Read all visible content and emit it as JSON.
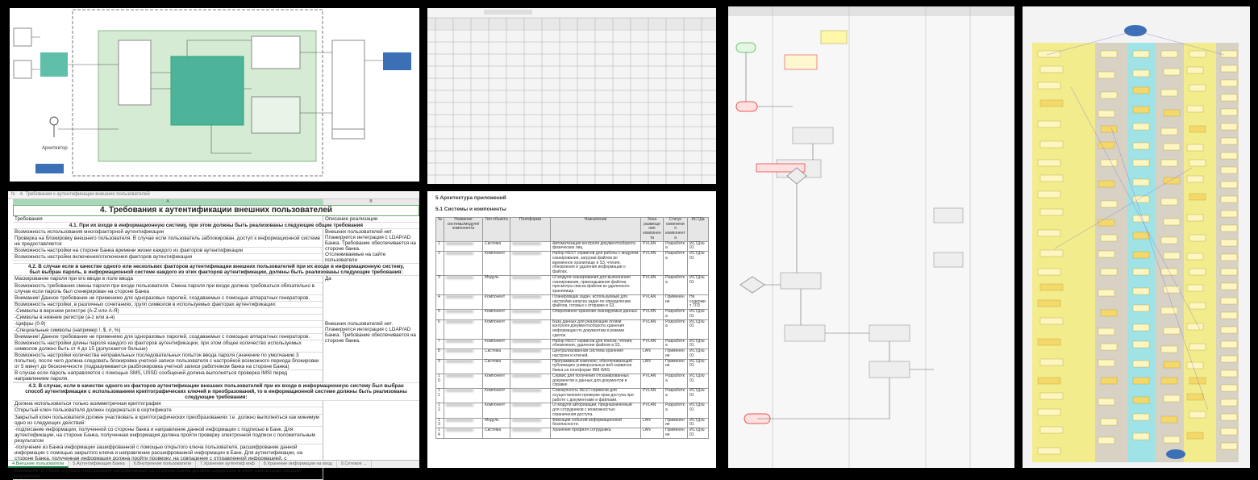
{
  "spreadsheet": {
    "formula_text": "4. Требования к аутентификации внешних пользователей",
    "col_a": "A",
    "col_b": "B",
    "title": "4. Требования к аутентификации внешних пользователей",
    "header_a": "Требования",
    "header_b": "Описание реализации",
    "sec1": "4.1. При их входе в информационную систему, при этом должны быть реализованы следующие общие требования",
    "rows1": [
      "Возможность использования многофакторной аутентификации",
      "Проверка на блокировку внешнего пользователя. В случае если пользователь заблокирован, доступ к информационной системе не предоставляется",
      "Возможность настройки на стороне Банка времени жизни каждого из факторов аутентификации",
      "Возможность настройки включения/отключения факторов аутентификации"
    ],
    "note1": "Внешних пользователей нет. Планируется интеграция с LDAP/AD Банка. Требование обеспечивается на стороне банка.",
    "note1b": "Отслеживаемые на сайте пользователи",
    "sec2": "4.2. В случае если в качестве одного или нескольких факторов аутентификации внешних пользователей при их входе в информационную систему, был выбран пароль, в информационной системе каждого из этих факторов аутентификации, должны быть реализованы следующие требования:",
    "rows2": [
      "Маскирование пароля при его вводе в поле ввода",
      "Возможность требования смены пароля при входе пользователя. Смена пароля при входе должна требоваться обязательно в случае если пароль был сгенерирован на стороне Банка",
      "Внимание! Данное требование не применимо для одноразовых паролей, создаваемых с помощью аппаратных генераторов.",
      "Возможность настройки, в различных сочетаниях, групп символов в используемых факторах аутентификации:",
      "-Символы в верхнем регистре (A-Z или А-Я)",
      "-Символы в нижнем регистре (a-z или а-я)",
      "-Цифры (0-9)",
      "-Специальные символы (например !, $, #, %)",
      "Внимание! Данное требование не применимо для одноразовых паролей, создаваемых с помощью аппаратных генераторов.",
      "Возможность настройки длины пароля каждого из факторов аутентификации, при этом общее количество используемых символов должно быть от 4 до 15 (допускается больше)",
      "Возможность настройки количества неправильных последовательных попыток ввода пароля (значение по умолчанию 3 попытки), после чего должна следовать блокировка учетной записи пользователя с настройкой возможного периода блокировки от 5 минут до бесконечности (подразумевается разблокировка учетной записи работником банка на стороне Банка)",
      "В случае если пароль направляется с помощью SMS, USSD сообщений должна выполняться проверка IMSI перед направлением пароля."
    ],
    "val_da": "Да",
    "note2": "Внешних пользователей нет. Планируется интеграция с LDAP/AD Банка. Требование обеспечивается на стороне банка.",
    "sec3": "4.3. В случае, если в качестве одного из факторов аутентификации внешних пользователей при их входе в информационную систему был выбран способ аутентификации с использованием криптографических ключей и преобразований, то в информационной системе должны быть реализованы следующие требования:",
    "rows3": [
      "Должна использоваться только асимметричная криптография",
      "Открытый ключ пользователя должен содержаться в сертификате",
      "Закрытый ключ пользователя должен участвовать в криптографических преобразованиях т.е. должно выполняться как минимум одно из следующих действий:",
      "-подписание информации, полученной со стороны банка и направление данной информации с подписью в Банк. Для аутентификации, на стороне Банка, полученная информация должна пройти проверку электронной подписи с положительным результатом",
      "-получение из Банка информации зашифрованной с помощью открытого ключа пользователя, расшифрование данной информации с помощью закрытого ключа и направление расшифрованной информации в Банк. Для аутентификации, на стороне Банка, полученная информация должна пройти проверку, на совпадение с отправленной информацией, с положительным результатом",
      "Внимание! В обоих случаях информация направляемая со стороны Банка должна содержать в себе самовозрастающий случайную"
    ],
    "tabs": [
      "4.Внешние пользователи",
      "5.Аутентификация Банка",
      "6.Внутренние пользователи",
      "7.Хранение аутентиф инф",
      "8.Хранение информации на вход",
      "9.Сетевое ..."
    ]
  },
  "document": {
    "heading": "5 Архитектура приложений",
    "subheading": "5.1 Системы и компоненты",
    "columns": [
      "№",
      "Название системы/модуля/компонента",
      "Тип объекта",
      "Платформа",
      "Назначение",
      "Зона размещения компонента",
      "Статус изменения компонента",
      "ИСТДа"
    ],
    "rows": [
      {
        "n": "1",
        "type": "Система",
        "purpose": "Автоматизация контроля документооборота физических лиц",
        "zone": "PVLAN",
        "status": "Разработка",
        "istd": "ИСТД№01"
      },
      {
        "n": "2",
        "type": "Компонент",
        "purpose": "Набор REST сервисов для работы с модулем сканирования, загрузки файлов во временное хранилище и S3, чтения, обновления и удаления информации о файлах.",
        "zone": "PVLAN",
        "status": "Разработка",
        "istd": "ИСТД№01"
      },
      {
        "n": "3",
        "type": "Модуль",
        "purpose": "UI модуля сканирования для выполнения сканирования, прикладывания файлов, просмотра списка файлов из удаленного хранилища",
        "zone": "PVLAN",
        "status": "Разработка",
        "istd": "ИСТД№01"
      },
      {
        "n": "4",
        "type": "Компонент",
        "purpose": "Планировщик задач, используемый для настройки запуска задач по определению файлов, готовых к отправке в S3.",
        "zone": "PVLAN",
        "status": "Применение",
        "istd": "Не содержит ТЛЗ"
      },
      {
        "n": "5",
        "type": "Компонент",
        "purpose": "Оперативное хранение сканируемых данных.",
        "zone": "PVLAN",
        "status": "Разработка",
        "istd": "ИСТД№01"
      },
      {
        "n": "6",
        "type": "Компонент",
        "purpose": "База данных для реализации логики контроля документооборота хранения информации по документам в режиме сделок.",
        "zone": "PVLAN",
        "status": "Разработка",
        "istd": "ИСТД№01"
      },
      {
        "n": "7",
        "type": "Компонент",
        "purpose": "Набор REST сервисов для поиска, чтения, обновления, удаления файлов в S3.",
        "zone": "PVLAN",
        "status": "Разработка",
        "istd": "ИСТД№01"
      },
      {
        "n": "8",
        "type": "Система",
        "purpose": "Централизованная система хранения настроек и ключей.",
        "zone": "LAN",
        "status": "Применение",
        "istd": "ИСТД№01"
      },
      {
        "n": "9",
        "type": "Система",
        "purpose": "Программный комплекс, обеспечивающий публикацию универсальных веб-сервисов банка на платформе IBM WAS.",
        "zone": "LAN",
        "status": "Применение",
        "istd": "ИСТД№01"
      },
      {
        "n": "10",
        "type": "Компонент",
        "purpose": "Сервис для получения отсканированных документов и данных для документов в справке.",
        "zone": "PVLAN",
        "status": "Разработка",
        "istd": "ИСТД№01"
      },
      {
        "n": "11",
        "type": "Компонент",
        "purpose": "Совокупность REST-сервисов для осуществления проверки прав доступа при работе с документами и файлами.",
        "zone": "PVLAN",
        "status": "Разработка",
        "istd": "ИСТД№01"
      },
      {
        "n": "12",
        "type": "Компонент",
        "purpose": "UI модуля авторизации, предназначенный для сотрудников с возможностью ограничения доступа.",
        "zone": "PVLAN",
        "status": "Разработка",
        "istd": "ИСТД№01"
      },
      {
        "n": "13",
        "type": "Модуль",
        "purpose": "Фиксация событий информационной безопасности.",
        "zone": "LAN",
        "status": "Применение",
        "istd": "ИСТД№01"
      },
      {
        "n": "14",
        "type": "Система",
        "purpose": "Хранение профиля сотрудника",
        "zone": "LAN",
        "status": "Применение",
        "istd": "ИСТД№01"
      }
    ]
  },
  "diagram": {
    "actor_label": "Архитектор"
  },
  "colors": {
    "green_zone": "#cfe8cf",
    "teal_box": "#4db39a",
    "yellow_lane": "#f2ec8c",
    "cyan_lane": "#9fe3e6",
    "gray_lane": "#d8d2c4",
    "accent_blue": "#3b6fb6"
  }
}
